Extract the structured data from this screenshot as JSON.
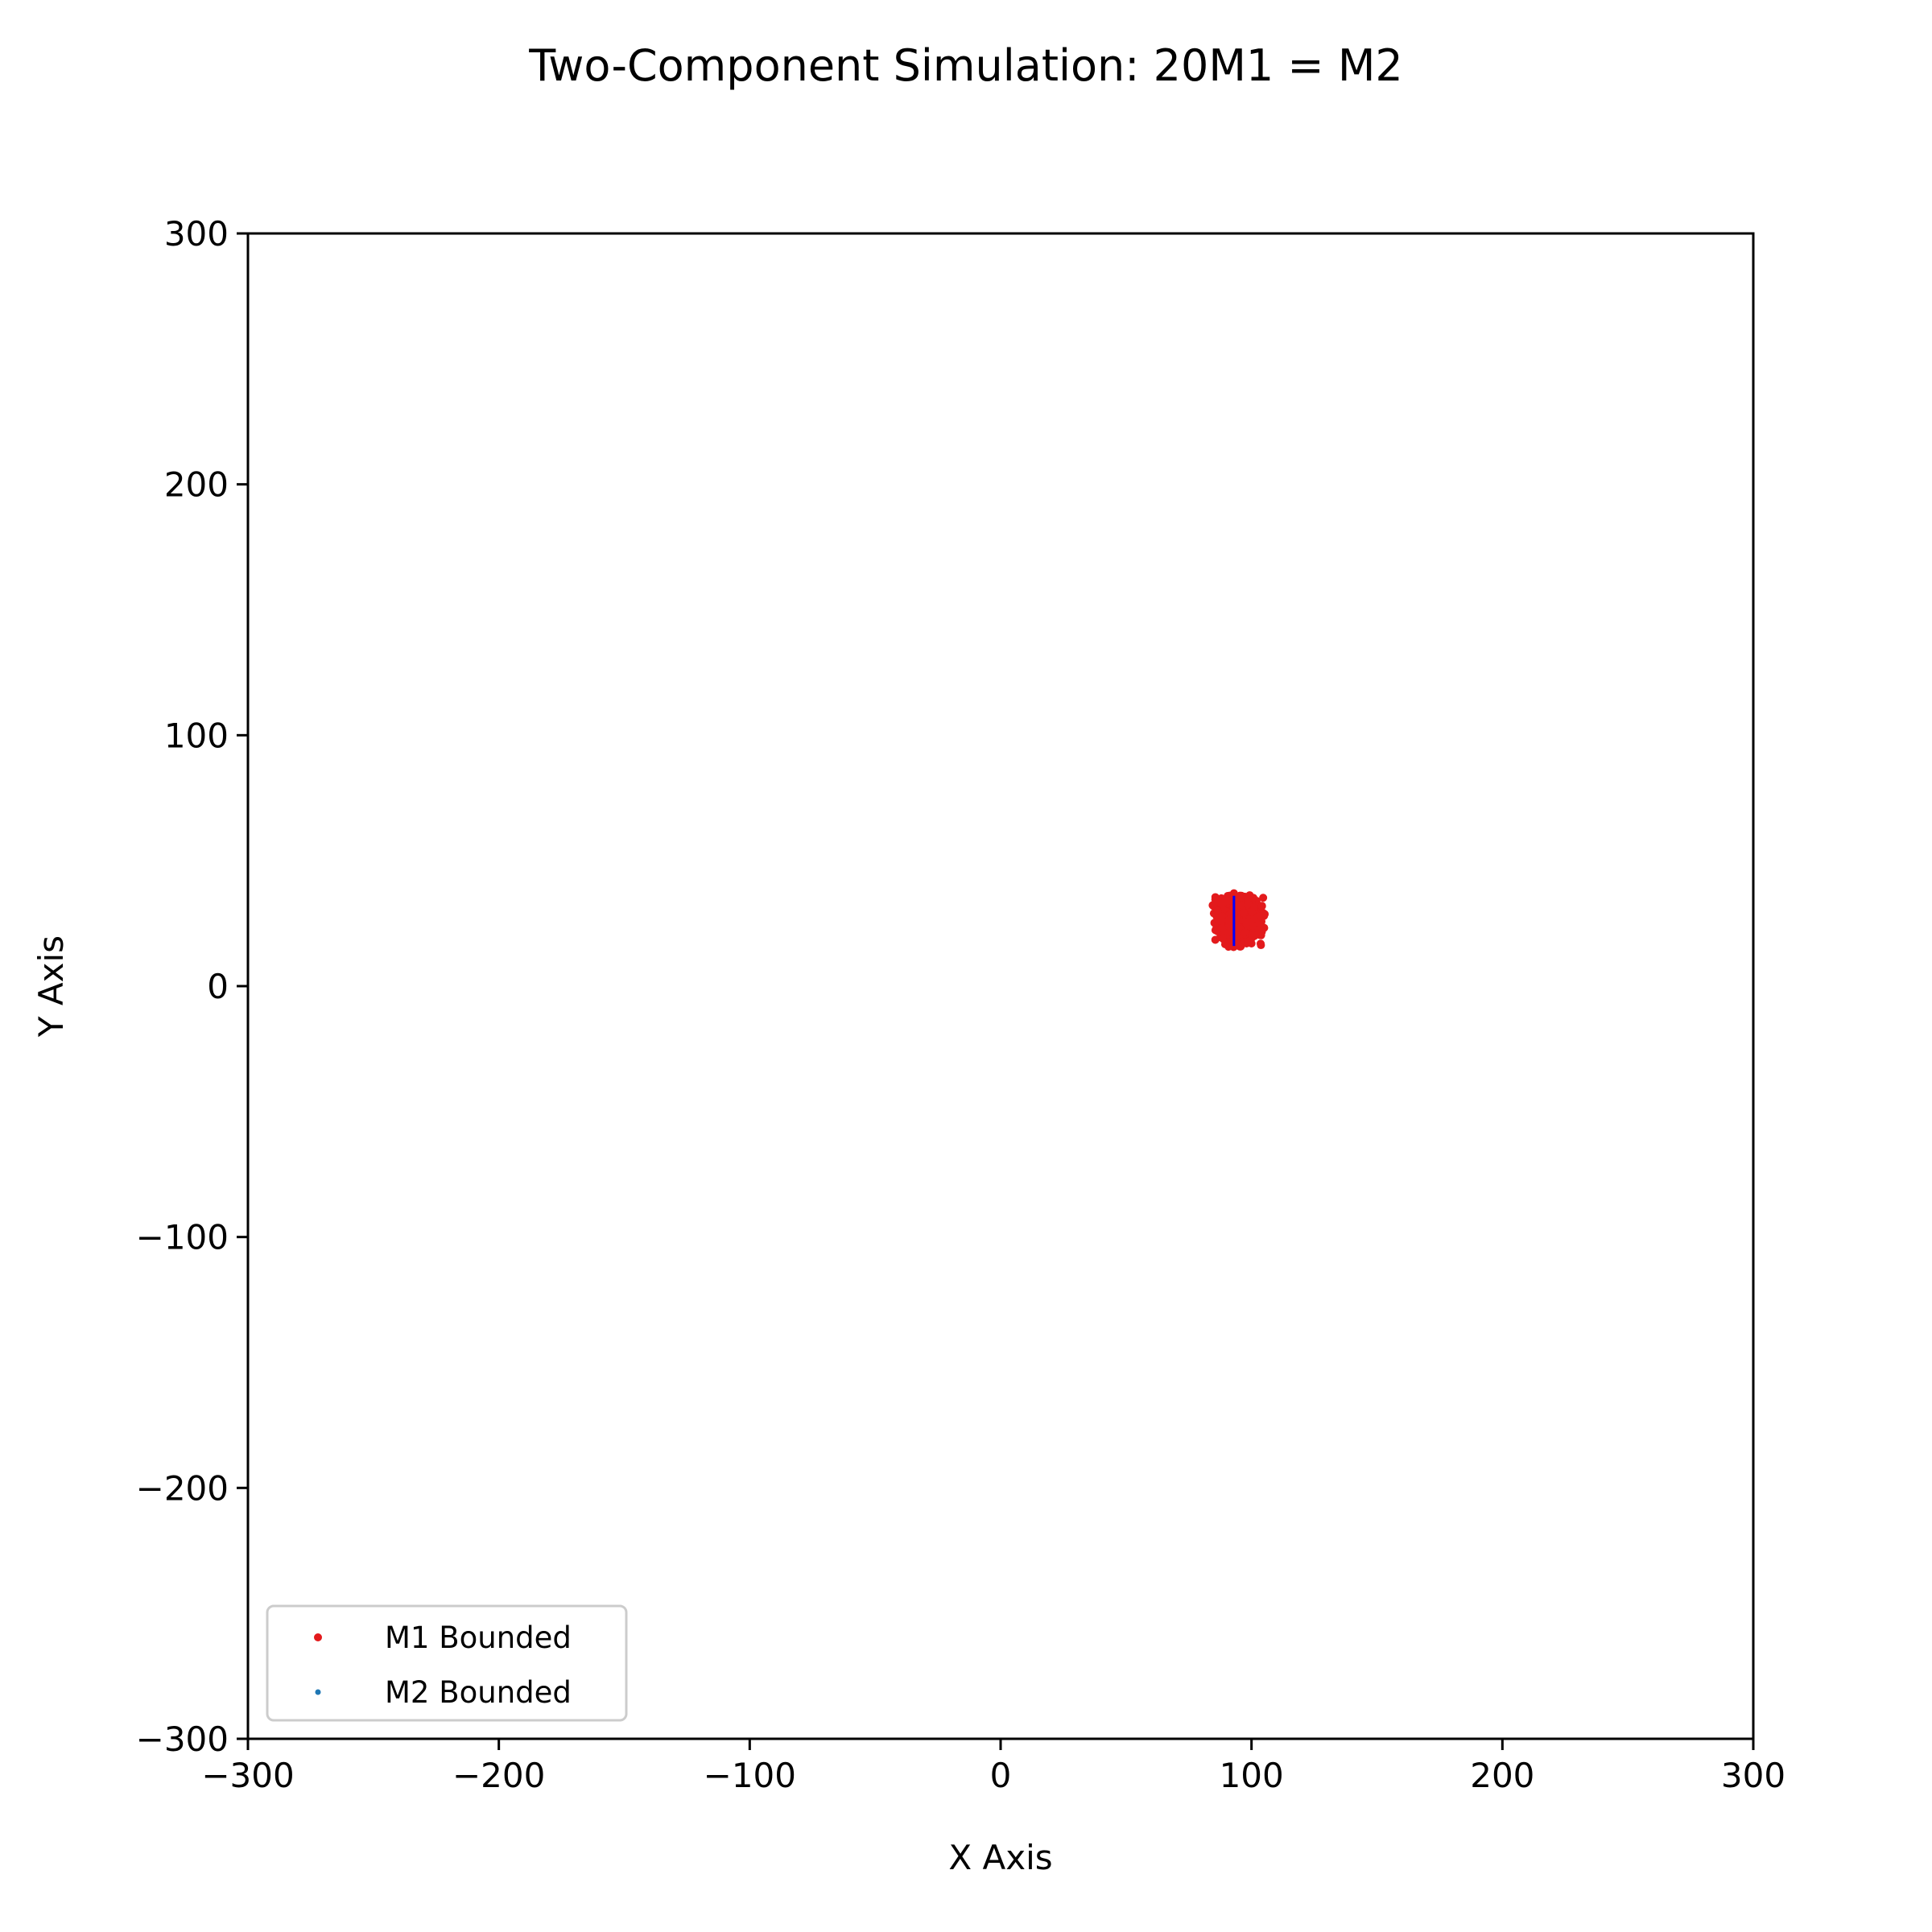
{
  "chart_data": {
    "type": "scatter",
    "title": "Two-Component Simulation: 20M1 = M2",
    "xlabel": "X Axis",
    "ylabel": "Y Axis",
    "xlim": [
      -300,
      300
    ],
    "ylim": [
      -300,
      300
    ],
    "xticks": [
      -300,
      -200,
      -100,
      0,
      100,
      200,
      300
    ],
    "yticks": [
      -300,
      -200,
      -100,
      0,
      100,
      200,
      300
    ],
    "xtick_labels": [
      "−300",
      "−200",
      "−100",
      "0",
      "100",
      "200",
      "300"
    ],
    "ytick_labels": [
      "−300",
      "−200",
      "−100",
      "0",
      "100",
      "200",
      "300"
    ],
    "grid": false,
    "legend_position": "lower-left",
    "series": [
      {
        "name": "M1 Bounded",
        "color": "#e31a1c",
        "cluster": {
          "center": [
            95,
            26
          ],
          "spread": [
            5,
            5
          ]
        },
        "points": [
          [
            95,
            26
          ],
          [
            94,
            27
          ],
          [
            96,
            25
          ],
          [
            93,
            28
          ],
          [
            97,
            24
          ],
          [
            92,
            26
          ],
          [
            98,
            27
          ],
          [
            95,
            30
          ],
          [
            94,
            22
          ],
          [
            96,
            32
          ],
          [
            91,
            24
          ],
          [
            99,
            29
          ],
          [
            93,
            20
          ],
          [
            97,
            33
          ],
          [
            90,
            28
          ],
          [
            100,
            25
          ],
          [
            95,
            18
          ],
          [
            94,
            35
          ],
          [
            88,
            30
          ],
          [
            102,
            27
          ],
          [
            89,
            22
          ],
          [
            101,
            31
          ],
          [
            92,
            34
          ],
          [
            98,
            20
          ],
          [
            87,
            26
          ],
          [
            103,
            24
          ],
          [
            95,
            16
          ],
          [
            96,
            36
          ],
          [
            86,
            31
          ],
          [
            104,
            29
          ],
          [
            90,
            19
          ],
          [
            100,
            33
          ],
          [
            93,
            37
          ],
          [
            98,
            17
          ],
          [
            88,
            24
          ],
          [
            102,
            21
          ],
          [
            91,
            30
          ],
          [
            99,
            23
          ],
          [
            94,
            31
          ],
          [
            97,
            28
          ],
          [
            92,
            23
          ],
          [
            96,
            21
          ],
          [
            90,
            33
          ],
          [
            100,
            19
          ],
          [
            95,
            33
          ],
          [
            93,
            25
          ],
          [
            97,
            30
          ],
          [
            89,
            27
          ],
          [
            101,
            26
          ],
          [
            94,
            24
          ],
          [
            96,
            27
          ],
          [
            91,
            28
          ],
          [
            99,
            26
          ],
          [
            92,
            30
          ],
          [
            98,
            31
          ],
          [
            95,
            21
          ],
          [
            94,
            29
          ],
          [
            97,
            22
          ],
          [
            93,
            32
          ],
          [
            96,
            23
          ],
          [
            85,
            29
          ],
          [
            105,
            28
          ],
          [
            86,
            23
          ],
          [
            104,
            22
          ],
          [
            88,
            35
          ],
          [
            102,
            34
          ],
          [
            90,
            17
          ],
          [
            100,
            17
          ],
          [
            92,
            36
          ],
          [
            98,
            35
          ],
          [
            87,
            33
          ],
          [
            103,
            32
          ],
          [
            95,
            24
          ],
          [
            94,
            26
          ],
          [
            96,
            29
          ],
          [
            93,
            23
          ],
          [
            97,
            26
          ],
          [
            92,
            28
          ],
          [
            98,
            24
          ],
          [
            95,
            28
          ],
          [
            91,
            26
          ],
          [
            99,
            28
          ],
          [
            94,
            20
          ],
          [
            96,
            34
          ],
          [
            90,
            25
          ],
          [
            100,
            30
          ],
          [
            89,
            31
          ],
          [
            101,
            23
          ],
          [
            93,
            35
          ],
          [
            97,
            19
          ]
        ]
      },
      {
        "name": "M2 Bounded",
        "color": "#1f77b4",
        "points": []
      }
    ],
    "markers": [
      {
        "name": "M1 center",
        "color": "#e31a1c",
        "x": 95,
        "y": 26,
        "half_width": 8,
        "half_height": 8
      },
      {
        "name": "M2 center",
        "color": "#0000ff",
        "x": 93,
        "y": 26,
        "half_width": 0,
        "half_height": 10
      }
    ]
  }
}
